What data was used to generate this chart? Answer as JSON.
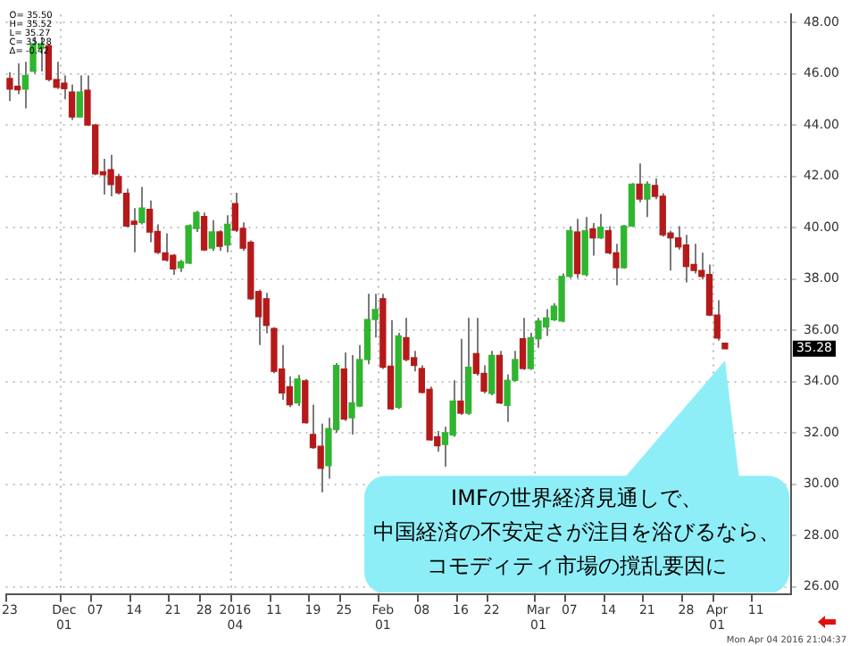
{
  "chart_data": {
    "type": "candlestick",
    "categories": [
      "23",
      null,
      null,
      null,
      null,
      null,
      null,
      "Dec\n01",
      null,
      null,
      null,
      "07",
      null,
      null,
      null,
      null,
      "14",
      null,
      null,
      null,
      null,
      "21",
      null,
      null,
      null,
      "28",
      null,
      null,
      null,
      "2016\n04",
      null,
      null,
      null,
      null,
      "11",
      null,
      null,
      null,
      null,
      "19",
      null,
      null,
      null,
      "25",
      null,
      null,
      null,
      null,
      "Feb\n01",
      null,
      null,
      null,
      null,
      "08",
      null,
      null,
      null,
      null,
      "16",
      null,
      null,
      null,
      "22",
      null,
      null,
      null,
      null,
      null,
      "Mar\n01",
      null,
      null,
      null,
      "07",
      null,
      null,
      null,
      null,
      "14",
      null,
      null,
      null,
      null,
      "21",
      null,
      null,
      null,
      null,
      "28",
      null,
      null,
      null,
      "Apr\n01",
      null,
      null,
      null,
      null,
      "11",
      null,
      null,
      null,
      null
    ],
    "ohlc": [
      [
        45.81,
        46.05,
        44.93,
        45.4
      ],
      [
        45.51,
        46.4,
        45.2,
        45.37
      ],
      [
        45.4,
        46.46,
        44.65,
        45.93
      ],
      [
        46.09,
        47.44,
        46.0,
        47.16
      ],
      [
        46.97,
        47.44,
        46.09,
        47.16
      ],
      [
        47.09,
        47.16,
        45.7,
        45.77
      ],
      [
        45.77,
        46.46,
        45.4,
        45.47
      ],
      [
        45.63,
        45.93,
        45.0,
        45.42
      ],
      [
        45.28,
        45.58,
        44.19,
        44.31
      ],
      [
        44.31,
        45.93,
        44.31,
        45.28
      ],
      [
        45.35,
        45.93,
        43.96,
        44.0
      ],
      [
        44.0,
        44.05,
        42.05,
        42.1
      ],
      [
        42.17,
        42.68,
        41.29,
        42.06
      ],
      [
        42.26,
        42.84,
        41.22,
        41.68
      ],
      [
        41.99,
        42.1,
        41.29,
        41.36
      ],
      [
        41.34,
        41.52,
        40.01,
        40.06
      ],
      [
        40.25,
        40.76,
        39.04,
        40.13
      ],
      [
        40.2,
        41.59,
        40.13,
        40.76
      ],
      [
        40.71,
        41.06,
        39.43,
        39.83
      ],
      [
        39.85,
        40.13,
        38.97,
        39.04
      ],
      [
        39.02,
        39.78,
        38.67,
        38.74
      ],
      [
        38.92,
        38.97,
        38.16,
        38.39
      ],
      [
        38.44,
        38.74,
        38.27,
        38.67
      ],
      [
        38.62,
        40.13,
        38.58,
        40.08
      ],
      [
        39.97,
        40.66,
        39.83,
        40.59
      ],
      [
        40.43,
        40.59,
        39.09,
        39.13
      ],
      [
        39.2,
        40.29,
        39.09,
        39.83
      ],
      [
        39.83,
        39.9,
        39.09,
        39.27
      ],
      [
        39.32,
        40.48,
        39.04,
        40.13
      ],
      [
        40.94,
        41.36,
        39.83,
        39.9
      ],
      [
        39.97,
        40.2,
        39.09,
        39.2
      ],
      [
        39.43,
        39.5,
        37.18,
        37.23
      ],
      [
        37.51,
        37.58,
        35.42,
        36.53
      ],
      [
        37.23,
        37.46,
        35.88,
        36.19
      ],
      [
        36.07,
        36.12,
        34.33,
        34.4
      ],
      [
        34.49,
        35.42,
        33.29,
        33.56
      ],
      [
        33.8,
        34.21,
        33.01,
        33.1
      ],
      [
        33.17,
        34.26,
        33.05,
        34.1
      ],
      [
        34.03,
        34.1,
        32.36,
        32.4
      ],
      [
        31.94,
        33.1,
        31.38,
        31.43
      ],
      [
        31.48,
        32.36,
        29.69,
        30.62
      ],
      [
        30.73,
        32.59,
        30.22,
        32.17
      ],
      [
        32.13,
        34.72,
        32.01,
        34.63
      ],
      [
        34.49,
        35.14,
        32.47,
        32.54
      ],
      [
        32.59,
        35.03,
        31.94,
        33.17
      ],
      [
        33.05,
        35.42,
        33.01,
        34.86
      ],
      [
        34.86,
        37.42,
        34.68,
        36.42
      ],
      [
        36.42,
        37.42,
        35.72,
        36.81
      ],
      [
        37.23,
        37.42,
        34.49,
        34.56
      ],
      [
        34.6,
        36.4,
        32.89,
        32.94
      ],
      [
        33.0,
        35.9,
        32.94,
        35.78
      ],
      [
        35.71,
        36.48,
        34.79,
        34.86
      ],
      [
        34.93,
        35.2,
        34.4,
        34.63
      ],
      [
        34.51,
        34.63,
        33.54,
        33.58
      ],
      [
        33.7,
        33.81,
        31.69,
        31.73
      ],
      [
        31.85,
        32.08,
        31.27,
        31.5
      ],
      [
        31.55,
        32.24,
        30.69,
        32.01
      ],
      [
        31.92,
        34.05,
        31.85,
        33.24
      ],
      [
        33.24,
        35.67,
        32.7,
        32.77
      ],
      [
        32.77,
        36.48,
        32.7,
        34.56
      ],
      [
        35.09,
        36.48,
        34.23,
        34.32
      ],
      [
        34.32,
        34.63,
        33.54,
        33.63
      ],
      [
        33.54,
        35.2,
        33.47,
        35.02
      ],
      [
        35.02,
        35.2,
        33.12,
        33.17
      ],
      [
        33.07,
        34.28,
        32.43,
        34.05
      ],
      [
        34.05,
        35.2,
        34.0,
        34.86
      ],
      [
        35.67,
        36.48,
        34.46,
        34.51
      ],
      [
        34.51,
        35.9,
        34.46,
        35.71
      ],
      [
        35.67,
        36.48,
        35.32,
        36.36
      ],
      [
        36.13,
        36.82,
        35.78,
        36.48
      ],
      [
        36.41,
        37.06,
        36.36,
        36.94
      ],
      [
        36.36,
        38.21,
        36.31,
        38.1
      ],
      [
        38.1,
        40.06,
        38.03,
        39.88
      ],
      [
        39.83,
        40.34,
        38.03,
        38.21
      ],
      [
        38.17,
        40.41,
        38.1,
        39.88
      ],
      [
        39.95,
        40.18,
        38.91,
        39.6
      ],
      [
        39.6,
        40.53,
        39.56,
        40.02
      ],
      [
        39.88,
        40.06,
        38.95,
        39.02
      ],
      [
        39.02,
        39.37,
        37.75,
        38.44
      ],
      [
        38.44,
        40.11,
        38.4,
        40.06
      ],
      [
        40.06,
        41.73,
        40.02,
        41.69
      ],
      [
        41.69,
        42.5,
        40.99,
        41.11
      ],
      [
        41.11,
        41.8,
        40.41,
        41.69
      ],
      [
        41.64,
        41.92,
        41.11,
        41.22
      ],
      [
        41.22,
        41.34,
        39.65,
        39.72
      ],
      [
        39.79,
        39.88,
        38.33,
        39.6
      ],
      [
        39.6,
        40.06,
        39.14,
        39.25
      ],
      [
        39.32,
        39.72,
        37.87,
        38.49
      ],
      [
        38.56,
        39.37,
        38.21,
        38.33
      ],
      [
        38.33,
        39.02,
        37.98,
        38.1
      ],
      [
        38.17,
        38.56,
        36.55,
        36.59
      ],
      [
        36.59,
        37.17,
        35.6,
        35.7
      ],
      [
        35.5,
        35.52,
        35.27,
        35.28
      ],
      null,
      null,
      null,
      null,
      null,
      null,
      null,
      null
    ],
    "ylim": [
      25.7,
      48.3
    ],
    "yticks": [
      {
        "value": 26,
        "label": "26.00"
      },
      {
        "value": 28,
        "label": "28.00"
      },
      {
        "value": 30,
        "label": "30.00"
      },
      {
        "value": 32,
        "label": "32.00"
      },
      {
        "value": 34,
        "label": "34.00"
      },
      {
        "value": 36,
        "label": "36.00"
      },
      {
        "value": 38,
        "label": "38.00"
      },
      {
        "value": 40,
        "label": "40.00"
      },
      {
        "value": 42,
        "label": "42.00"
      },
      {
        "value": 44,
        "label": "44.00"
      },
      {
        "value": 46,
        "label": "46.00"
      },
      {
        "value": 48,
        "label": "48.00"
      }
    ],
    "grid": true,
    "annotations": [
      "O= 35.50\nH= 35.52\nL= 35.27\nC= 35.28\nΔ= -0.42",
      {
        "text": "35.28",
        "y": 35.28
      },
      "IMFの世界経済見通しで、中国経済の不安定さが注目を浴びるなら、コモディティ市場の撹乱要因に",
      "Mon Apr 04 2016 21:04:37"
    ]
  }
}
